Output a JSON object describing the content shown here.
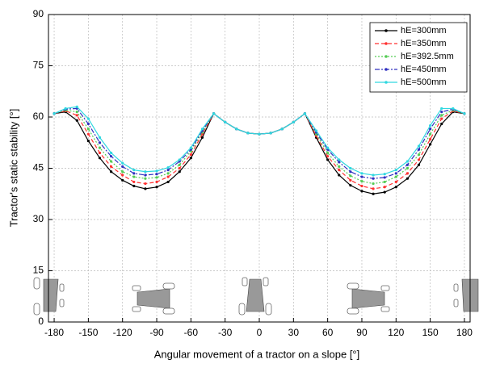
{
  "chart_data": {
    "type": "line",
    "xlabel": "Angular movement of a tractor on a slope [°]",
    "ylabel": "Tractor's static stability [°]",
    "x": [
      -180,
      -170,
      -160,
      -150,
      -140,
      -130,
      -120,
      -110,
      -100,
      -90,
      -80,
      -70,
      -60,
      -50,
      -40,
      -30,
      -20,
      -10,
      0,
      10,
      20,
      30,
      40,
      50,
      60,
      70,
      80,
      90,
      100,
      110,
      120,
      130,
      140,
      150,
      160,
      170,
      180
    ],
    "xlim": [
      -185,
      185
    ],
    "xticks": [
      -180,
      -150,
      -120,
      -90,
      -60,
      -30,
      0,
      30,
      60,
      90,
      120,
      150,
      180
    ],
    "ylim": [
      0,
      90
    ],
    "yticks": [
      0,
      15,
      30,
      45,
      60,
      75,
      90
    ],
    "grid": true,
    "legend": "upper right",
    "series": [
      {
        "name": "hE=300mm",
        "color": "#000000",
        "linestyle": "solid",
        "values": [
          61,
          61.5,
          59,
          53,
          48,
          44,
          41.5,
          39.8,
          39,
          39.5,
          41,
          44,
          48,
          54,
          61,
          58.5,
          56.5,
          55.3,
          55,
          55.3,
          56.5,
          58.5,
          61,
          54,
          47.5,
          43,
          40,
          38.3,
          37.5,
          38,
          39.5,
          42,
          46,
          52,
          58,
          61.5,
          61
        ]
      },
      {
        "name": "hE=350mm",
        "color": "#ff3030",
        "linestyle": "dash",
        "values": [
          61,
          61.8,
          60.5,
          55,
          49.5,
          45.5,
          43,
          41,
          40.5,
          41,
          42.5,
          45,
          49,
          55,
          61,
          58.5,
          56.5,
          55.3,
          55,
          55.3,
          56.5,
          58.5,
          61,
          54.5,
          48.5,
          44.5,
          41.5,
          39.8,
          39,
          39.5,
          41,
          43.5,
          47.5,
          53.5,
          59.5,
          61.8,
          61
        ]
      },
      {
        "name": "hE=392.5mm",
        "color": "#55cc55",
        "linestyle": "dot",
        "values": [
          61,
          62,
          61.5,
          56.5,
          51,
          47,
          44,
          42.5,
          42,
          42.3,
          43.5,
          46,
          50,
          55.5,
          61,
          58.5,
          56.5,
          55.3,
          55,
          55.3,
          56.5,
          58.5,
          61,
          55,
          49.5,
          45.5,
          42.8,
          41.2,
          40.5,
          41,
          42.5,
          45,
          49,
          55,
          60.5,
          62,
          61
        ]
      },
      {
        "name": "hE=450mm",
        "color": "#3030c0",
        "linestyle": "dashdot",
        "values": [
          61,
          62.3,
          62.5,
          58,
          52.5,
          48.5,
          45.5,
          43.5,
          43,
          43.3,
          44.5,
          47,
          50.5,
          56,
          61,
          58.5,
          56.5,
          55.3,
          55,
          55.3,
          56.5,
          58.5,
          61,
          55.5,
          50.5,
          46.8,
          44,
          42.5,
          42,
          42.3,
          43.5,
          46,
          50.5,
          56.5,
          61.5,
          62.3,
          61
        ]
      },
      {
        "name": "hE=500mm",
        "color": "#30d8e0",
        "linestyle": "solid",
        "values": [
          61,
          62.5,
          63,
          59.5,
          54,
          49.5,
          46.5,
          44.5,
          44,
          44.2,
          45.2,
          47.5,
          51,
          56.5,
          61,
          58.5,
          56.5,
          55.3,
          55,
          55.3,
          56.5,
          58.5,
          61,
          56,
          51,
          47.5,
          45,
          43.5,
          43,
          43.3,
          44.5,
          47,
          51.5,
          57.5,
          62.5,
          62.5,
          61
        ]
      }
    ]
  }
}
